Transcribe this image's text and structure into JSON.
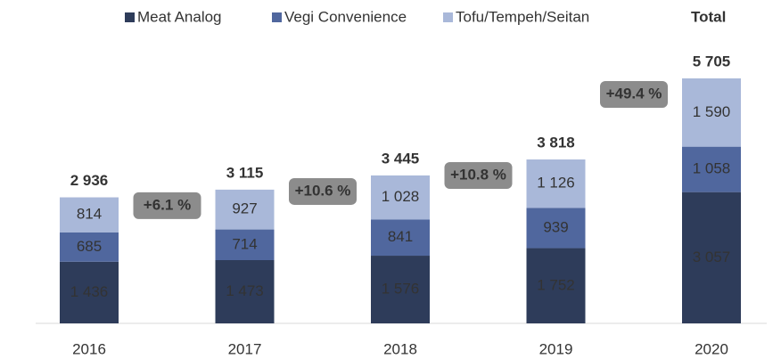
{
  "chart_data": {
    "type": "stacked_bar",
    "categories": [
      "2016",
      "2017",
      "2018",
      "2019",
      "2020"
    ],
    "series": [
      {
        "name": "Meat Analog",
        "color": "#2e3c5a",
        "values": [
          1436,
          1473,
          1576,
          1752,
          3057
        ],
        "value_labels": [
          "1 436",
          "1 473",
          "1 576",
          "1 752",
          "3 057"
        ]
      },
      {
        "name": "Vegi Convenience",
        "color": "#50679e",
        "values": [
          685,
          714,
          841,
          939,
          1058
        ],
        "value_labels": [
          "685",
          "714",
          "841",
          "939",
          "1 058"
        ]
      },
      {
        "name": "Tofu/Tempeh/Seitan",
        "color": "#a9b8d9",
        "values": [
          814,
          927,
          1028,
          1126,
          1590
        ],
        "value_labels": [
          "814",
          "927",
          "1 028",
          "1 126",
          "1 590"
        ]
      }
    ],
    "total_name": "Total",
    "totals": {
      "values": [
        2936,
        3115,
        3445,
        3818,
        5705
      ],
      "labels": [
        "2 936",
        "3 115",
        "3 445",
        "3 818",
        "5 705"
      ]
    },
    "growth_labels": [
      null,
      "+6.1 %",
      "+10.6 %",
      "+10.8 %",
      "+49.4 %"
    ]
  }
}
